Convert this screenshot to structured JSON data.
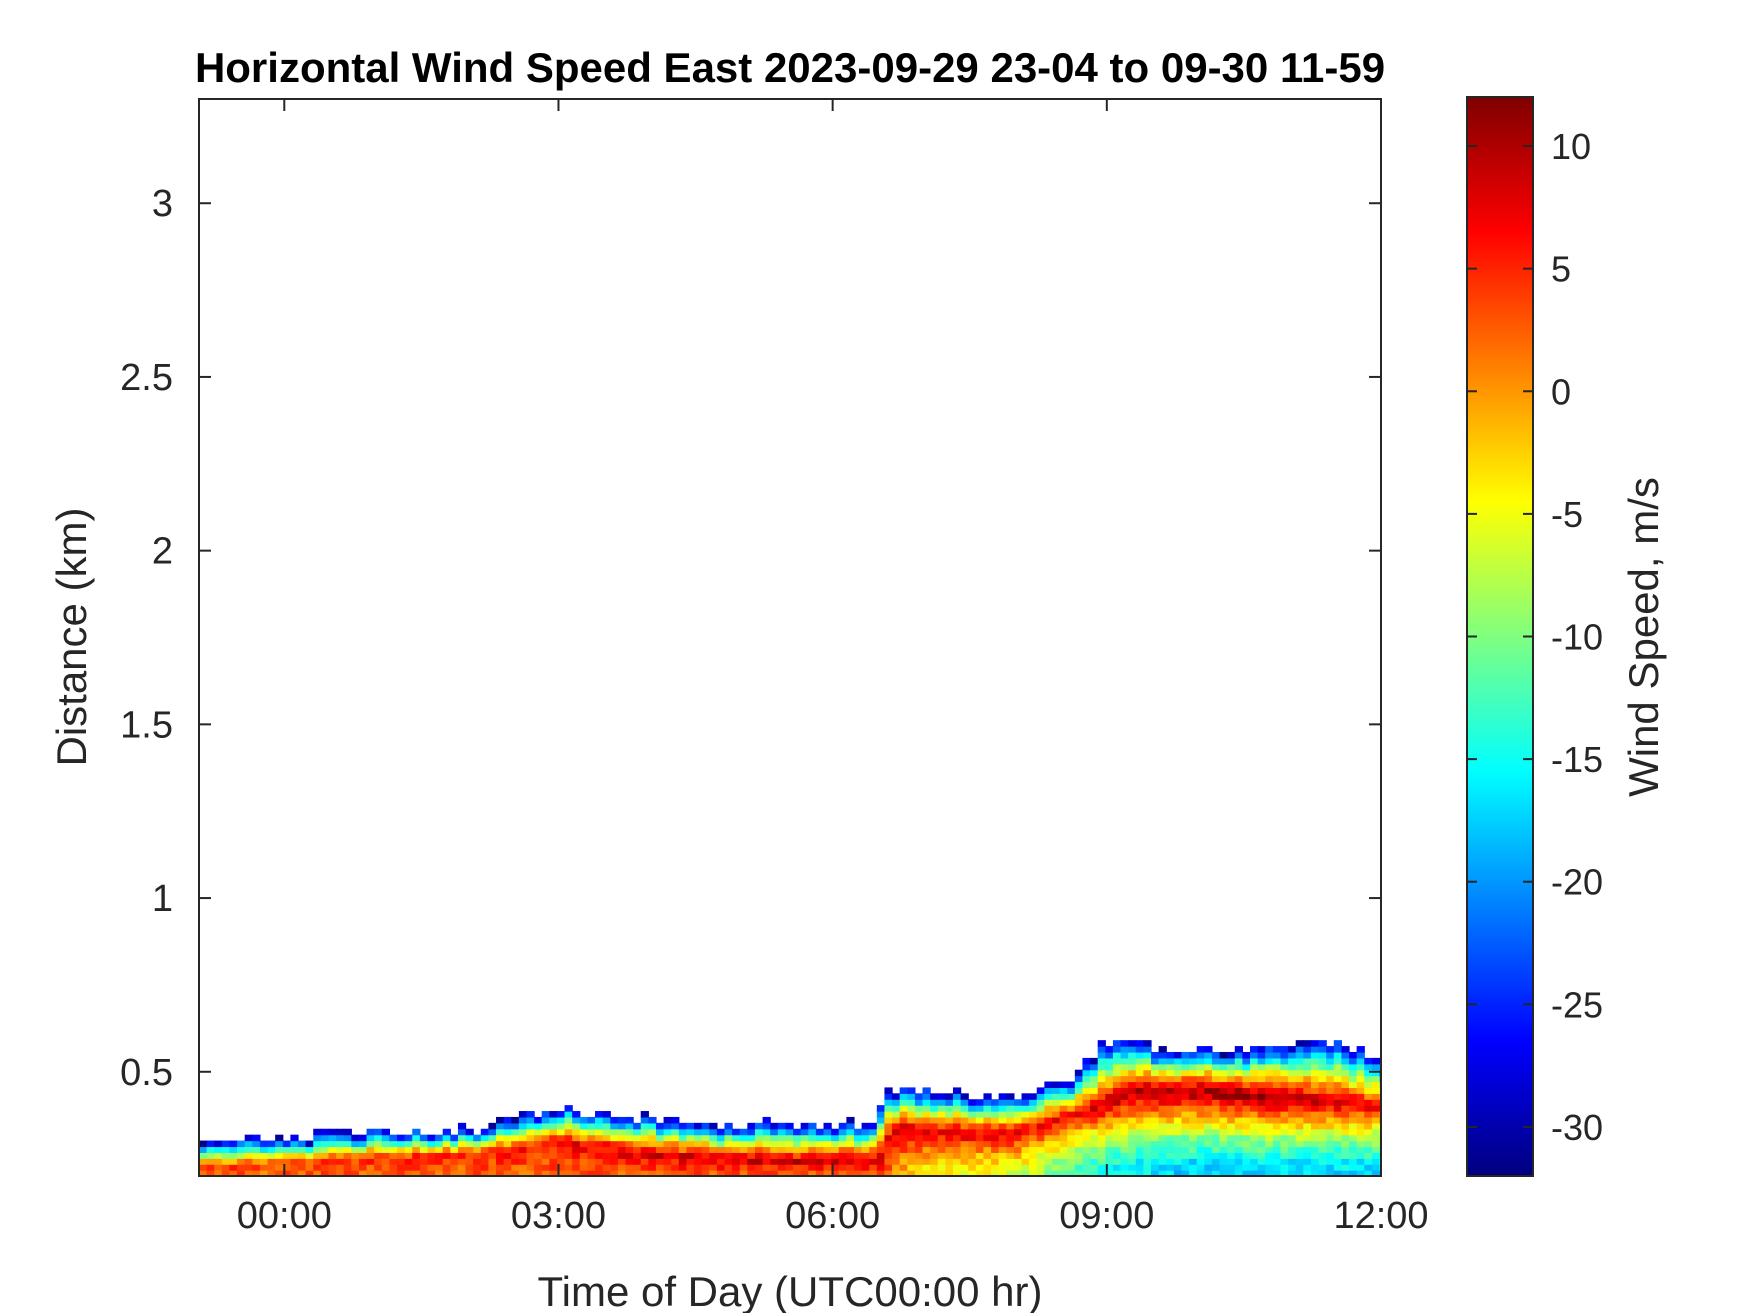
{
  "chart_data": {
    "type": "heatmap",
    "title": "Horizontal Wind Speed East 2023-09-29 23-04 to 09-30 11-59",
    "xlabel": "Time of Day (UTC00:00 hr)",
    "ylabel": "Distance (km)",
    "xlim": [
      "2023-09-29 23:04",
      "2023-09-30 12:00"
    ],
    "ylim": [
      0.2,
      3.3
    ],
    "x_ticks": [
      "00:00",
      "03:00",
      "06:00",
      "09:00",
      "12:00"
    ],
    "y_ticks": [
      0.5,
      1,
      1.5,
      2,
      2.5,
      3
    ],
    "y_tick_labels": [
      "0.5",
      "1",
      "1.5",
      "2",
      "2.5",
      "3"
    ],
    "grid": false,
    "colormap": "jet",
    "colorbar": {
      "label": "Wind Speed, m/s",
      "range": [
        -32,
        12
      ],
      "ticks": [
        10,
        5,
        0,
        -5,
        -10,
        -15,
        -20,
        -25,
        -30
      ],
      "tick_labels": [
        "10",
        "5",
        "0",
        "-5",
        "-10",
        "-15",
        "-20",
        "-25",
        "-30"
      ]
    },
    "data_top_km": [
      [
        "2023-09-29 23:04",
        0.28
      ],
      [
        "2023-09-29 23:30",
        0.3
      ],
      [
        "2023-09-30 00:15",
        0.3
      ],
      [
        "2023-09-30 00:30",
        0.32
      ],
      [
        "2023-09-30 01:30",
        0.32
      ],
      [
        "2023-09-30 02:15",
        0.33
      ],
      [
        "2023-09-30 02:40",
        0.37
      ],
      [
        "2023-09-30 03:00",
        0.39
      ],
      [
        "2023-09-30 03:30",
        0.37
      ],
      [
        "2023-09-30 04:00",
        0.36
      ],
      [
        "2023-09-30 04:40",
        0.33
      ],
      [
        "2023-09-30 05:20",
        0.35
      ],
      [
        "2023-09-30 06:25",
        0.34
      ],
      [
        "2023-09-30 06:35",
        0.44
      ],
      [
        "2023-09-30 08:00",
        0.42
      ],
      [
        "2023-09-30 08:40",
        0.48
      ],
      [
        "2023-09-30 09:00",
        0.58
      ],
      [
        "2023-09-30 10:00",
        0.55
      ],
      [
        "2023-09-30 10:40",
        0.56
      ],
      [
        "2023-09-30 11:30",
        0.58
      ],
      [
        "2023-09-30 12:00",
        0.52
      ]
    ],
    "core_height_km": [
      [
        "2023-09-29 23:04",
        0.22
      ],
      [
        "2023-09-30 00:30",
        0.24
      ],
      [
        "2023-09-30 02:30",
        0.27
      ],
      [
        "2023-09-30 03:00",
        0.3
      ],
      [
        "2023-09-30 04:00",
        0.26
      ],
      [
        "2023-09-30 05:30",
        0.24
      ],
      [
        "2023-09-30 06:30",
        0.24
      ],
      [
        "2023-09-30 06:40",
        0.33
      ],
      [
        "2023-09-30 08:00",
        0.32
      ],
      [
        "2023-09-30 08:45",
        0.38
      ],
      [
        "2023-09-30 09:20",
        0.44
      ],
      [
        "2023-09-30 10:10",
        0.44
      ],
      [
        "2023-09-30 10:50",
        0.42
      ],
      [
        "2023-09-30 12:00",
        0.4
      ]
    ],
    "core_speed_ms": [
      [
        "2023-09-29 23:04",
        4
      ],
      [
        "2023-09-30 02:00",
        5
      ],
      [
        "2023-09-30 04:00",
        8
      ],
      [
        "2023-09-30 06:00",
        9
      ],
      [
        "2023-09-30 07:00",
        8
      ],
      [
        "2023-09-30 08:30",
        7
      ],
      [
        "2023-09-30 09:30",
        10
      ],
      [
        "2023-09-30 10:30",
        11
      ],
      [
        "2023-09-30 12:00",
        6
      ]
    ],
    "near_surface_speed_ms": [
      [
        "2023-09-29 23:04",
        2
      ],
      [
        "2023-09-30 06:30",
        3
      ],
      [
        "2023-09-30 07:00",
        -4
      ],
      [
        "2023-09-30 08:00",
        -6
      ],
      [
        "2023-09-30 08:50",
        -15
      ],
      [
        "2023-09-30 10:00",
        -18
      ],
      [
        "2023-09-30 12:00",
        -17
      ]
    ]
  }
}
